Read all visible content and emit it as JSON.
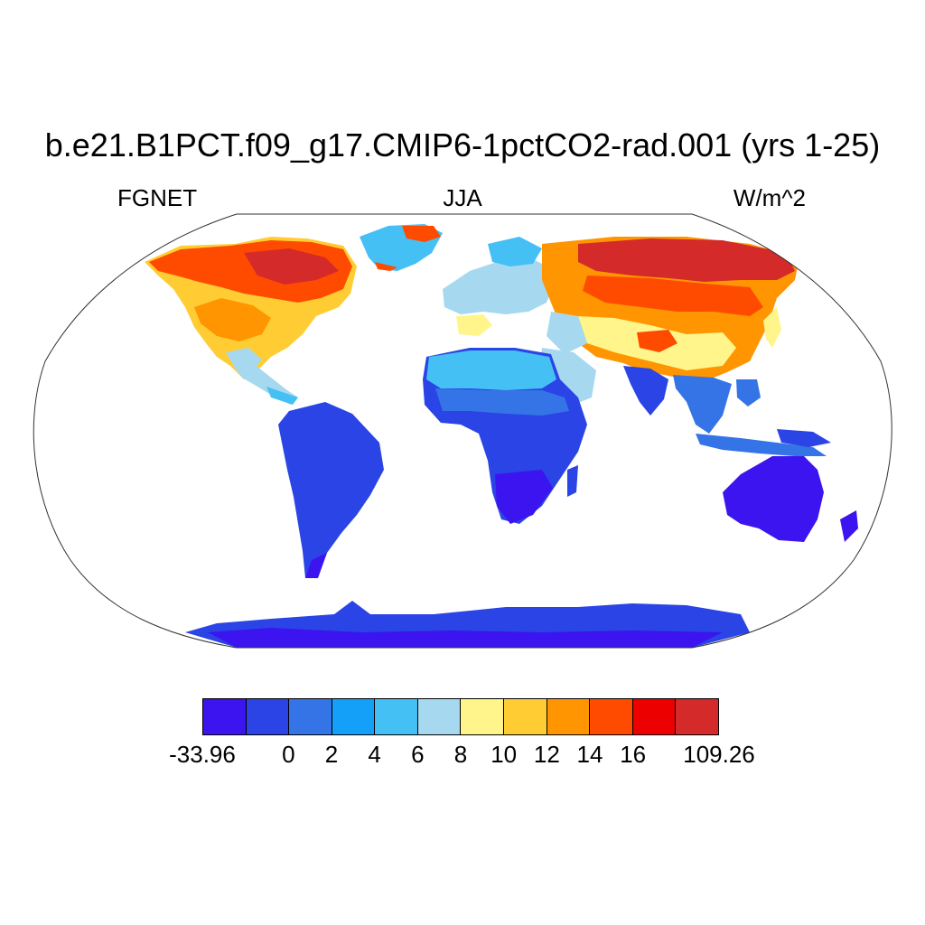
{
  "title": "b.e21.B1PCT.f09_g17.CMIP6-1pctCO2-rad.001 (yrs 1-25)",
  "left_label": "FGNET",
  "center_label": "JJA",
  "right_label": "W/m^2",
  "colorbar": {
    "colors": [
      "#3c14f0",
      "#2a44e6",
      "#3474e6",
      "#14a0f8",
      "#44c0f4",
      "#a6d8f0",
      "#fff58a",
      "#ffcc33",
      "#ff9500",
      "#ff4b00",
      "#ec0000",
      "#d42a2a"
    ],
    "labels": [
      "-33.96",
      "0",
      "2",
      "4",
      "6",
      "8",
      "10",
      "12",
      "14",
      "16",
      "109.26"
    ]
  },
  "map": {
    "projection": "Robinson",
    "field": "FGNET",
    "season": "JJA",
    "land_only": true
  }
}
